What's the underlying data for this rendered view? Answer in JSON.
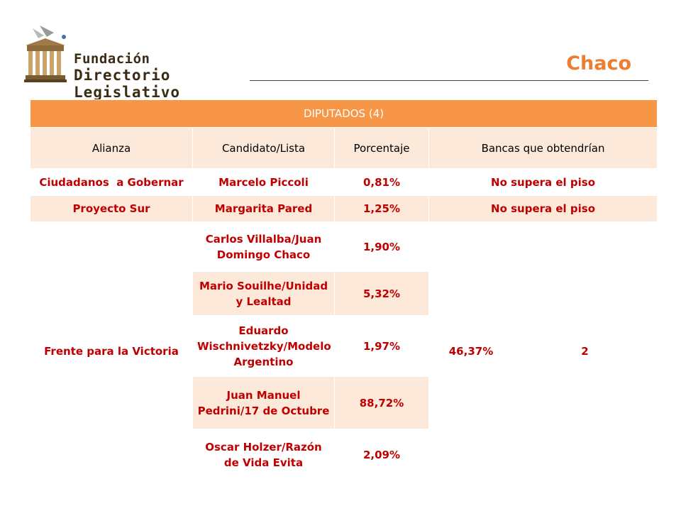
{
  "header": {
    "logo_line1": "Fundación",
    "logo_line2": "Directorio Legislativo",
    "province": "Chaco"
  },
  "table": {
    "title": "DIPUTADOS (4)",
    "columns": [
      "Alianza",
      "Candidato/Lista",
      "Porcentaje",
      "Bancas que obtendrían"
    ],
    "rows": [
      {
        "alianza": "Ciudadanos  a Gobernar",
        "candidato": "Marcelo Piccoli",
        "porcentaje": "0,81%",
        "bancas": "No supera el piso"
      },
      {
        "alianza": "Proyecto Sur",
        "candidato": "Margarita Pared",
        "porcentaje": "1,25%",
        "bancas": "No supera el piso"
      }
    ],
    "frente": {
      "alianza": "Frente para la Victoria",
      "total_porcentaje": "46,37%",
      "bancas": "2",
      "listas": [
        {
          "candidato": "Carlos Villalba/Juan Domingo Chaco",
          "porcentaje": "1,90%"
        },
        {
          "candidato": "Mario Souilhe/Unidad y Lealtad",
          "porcentaje": "5,32%"
        },
        {
          "candidato": "Eduardo Wischnivetzky/Modelo Argentino",
          "porcentaje": "1,97%"
        },
        {
          "candidato": "Juan Manuel Pedrini/17 de Octubre",
          "porcentaje": "88,72%"
        },
        {
          "candidato": "Oscar Holzer/Razón de Vida Evita",
          "porcentaje": "2,09%"
        }
      ]
    }
  },
  "colors": {
    "accent": "#f79646",
    "accent_light": "#fde9d9",
    "text_red": "#c00000",
    "province_orange": "#ed7d31"
  }
}
